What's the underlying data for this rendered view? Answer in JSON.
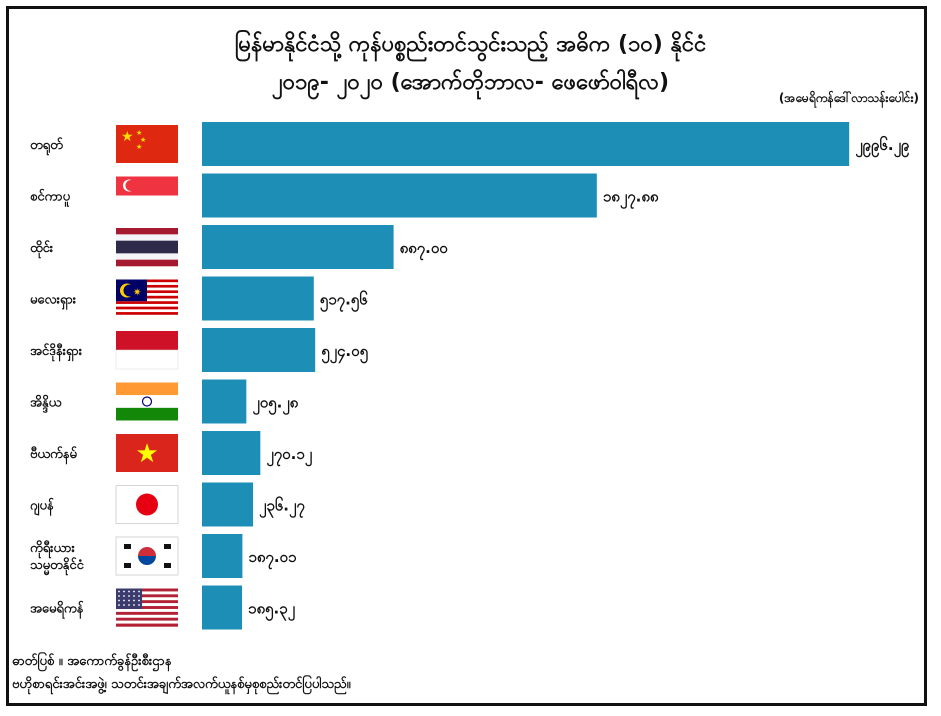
{
  "chart_data": {
    "type": "bar",
    "orientation": "horizontal",
    "title_line1": "မြန်မာနိုင်ငံသို့ ကုန်ပစ္စည်းတင်သွင်းသည့် အဓိက (၁၀) နိုင်ငံ",
    "title_line2": "၂၀၁၉- ၂၀၂၀ (အောက်တိုဘာလ- ဖေဖော်ဝါရီလ)",
    "unit": "(အမေရိကန်ဒေါ်လာသန်းပေါင်း)",
    "categories": [
      "တရုတ်",
      "စင်ကာပူ",
      "ထိုင်း",
      "မလေးရှား",
      "အင်ဒိုနီးရှား",
      "အိန္ဒိယ",
      "ဗီယက်နမ်",
      "ဂျပန်",
      "ကိုရီးယားသမ္မတနိုင်ငံ",
      "အမေရိကန်"
    ],
    "category_lines": [
      [
        "တရုတ်"
      ],
      [
        "စင်ကာပူ"
      ],
      [
        "ထိုင်း"
      ],
      [
        "မလေးရှား"
      ],
      [
        "အင်ဒိုနီးရှား"
      ],
      [
        "အိန္ဒိယ"
      ],
      [
        "ဗီယက်နမ်"
      ],
      [
        "ဂျပန်"
      ],
      [
        "ကိုရီးယား",
        "သမ္မတနိုင်ငံ"
      ],
      [
        "အမေရိကန်"
      ]
    ],
    "values": [
      2996.29,
      1827.88,
      887.0,
      517.56,
      524.05,
      205.28,
      270.12,
      236.27,
      187.01,
      185.32
    ],
    "value_labels": [
      "၂၉၉၆.၂၉",
      "၁၈၂၇.၈၈",
      "၈၈၇.၀၀",
      "၅၁၇.၅၆",
      "၅၂၄.၀၅",
      "၂၀၅.၂၈",
      "၂၇၀.၁၂",
      "၂၃၆.၂၇",
      "၁၈၇.၀၁",
      "၁၈၅.၃၂"
    ],
    "flags": [
      "china-flag",
      "singapore-flag",
      "thailand-flag",
      "malaysia-flag",
      "indonesia-flag",
      "india-flag",
      "vietnam-flag",
      "japan-flag",
      "south-korea-flag",
      "usa-flag"
    ],
    "bar_color": "#1d8fb6",
    "xlim": [
      0,
      3000
    ],
    "legend": "none",
    "grid": false
  },
  "source": {
    "line1": "ဓာတ်ပြစ် ။ အကောက်ခွန်ဦးစီးဌာန",
    "line2": "ဗဟိုစာရင်းအင်းအဖွဲ့၊ သတင်းအချက်အလက်ယူနစ်မှစုစည်းတင်ပြပါသည်။"
  }
}
